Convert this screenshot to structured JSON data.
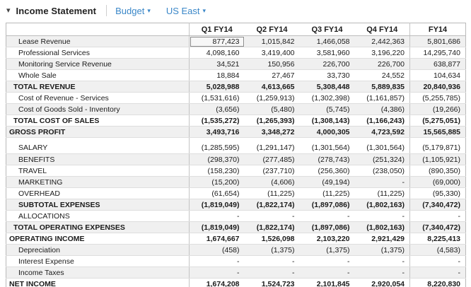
{
  "toolbar": {
    "title": "Income Statement",
    "collapse_caret": "▾",
    "dropdowns": [
      {
        "label": "Budget",
        "caret": "▼"
      },
      {
        "label": "US East",
        "caret": "▼"
      }
    ]
  },
  "colors": {
    "accent_blue": "#3a87c8",
    "row_shade": "#f0f0f0",
    "grid_border": "#b9b9b9",
    "text": "#1a1a1a"
  },
  "table": {
    "columns": [
      "Q1 FY14",
      "Q2 FY14",
      "Q3 FY14",
      "Q4 FY14",
      "FY14"
    ],
    "selection": {
      "row_index": 0,
      "col_index": 0,
      "row_label": "Lease Revenue",
      "column": "Q1 FY14"
    },
    "rows": [
      {
        "label": "Lease Revenue",
        "indent": 2,
        "bold": false,
        "values": [
          "877,423",
          "1,015,842",
          "1,466,058",
          "2,442,363",
          "5,801,686"
        ]
      },
      {
        "label": "Professional Services",
        "indent": 2,
        "bold": false,
        "values": [
          "4,098,160",
          "3,419,400",
          "3,581,960",
          "3,196,220",
          "14,295,740"
        ]
      },
      {
        "label": "Monitoring Service Revenue",
        "indent": 2,
        "bold": false,
        "values": [
          "34,521",
          "150,956",
          "226,700",
          "226,700",
          "638,877"
        ]
      },
      {
        "label": "Whole Sale",
        "indent": 2,
        "bold": false,
        "values": [
          "18,884",
          "27,467",
          "33,730",
          "24,552",
          "104,634"
        ]
      },
      {
        "label": "TOTAL REVENUE",
        "indent": 1,
        "bold": true,
        "values": [
          "5,028,988",
          "4,613,665",
          "5,308,448",
          "5,889,835",
          "20,840,936"
        ]
      },
      {
        "label": "Cost of Revenue - Services",
        "indent": 2,
        "bold": false,
        "values": [
          "(1,531,616)",
          "(1,259,913)",
          "(1,302,398)",
          "(1,161,857)",
          "(5,255,785)"
        ]
      },
      {
        "label": "Cost of Goods Sold - Inventory",
        "indent": 2,
        "bold": false,
        "values": [
          "(3,656)",
          "(5,480)",
          "(5,745)",
          "(4,386)",
          "(19,266)"
        ]
      },
      {
        "label": "TOTAL COST OF SALES",
        "indent": 1,
        "bold": true,
        "values": [
          "(1,535,272)",
          "(1,265,393)",
          "(1,308,143)",
          "(1,166,243)",
          "(5,275,051)"
        ]
      },
      {
        "label": "GROSS PROFIT",
        "indent": 0,
        "bold": true,
        "values": [
          "3,493,716",
          "3,348,272",
          "4,000,305",
          "4,723,592",
          "15,565,885"
        ]
      },
      {
        "type": "spacer"
      },
      {
        "label": "SALARY",
        "indent": 2,
        "bold": false,
        "values": [
          "(1,285,595)",
          "(1,291,147)",
          "(1,301,564)",
          "(1,301,564)",
          "(5,179,871)"
        ]
      },
      {
        "label": "BENEFITS",
        "indent": 2,
        "bold": false,
        "values": [
          "(298,370)",
          "(277,485)",
          "(278,743)",
          "(251,324)",
          "(1,105,921)"
        ]
      },
      {
        "label": "TRAVEL",
        "indent": 2,
        "bold": false,
        "values": [
          "(158,230)",
          "(237,710)",
          "(256,360)",
          "(238,050)",
          "(890,350)"
        ]
      },
      {
        "label": "MARKETING",
        "indent": 2,
        "bold": false,
        "values": [
          "(15,200)",
          "(4,606)",
          "(49,194)",
          "-",
          "(69,000)"
        ]
      },
      {
        "label": "OVERHEAD",
        "indent": 2,
        "bold": false,
        "values": [
          "(61,654)",
          "(11,225)",
          "(11,225)",
          "(11,225)",
          "(95,330)"
        ]
      },
      {
        "label": "SUBTOTAL EXPENSES",
        "indent": 2,
        "bold": true,
        "values": [
          "(1,819,049)",
          "(1,822,174)",
          "(1,897,086)",
          "(1,802,163)",
          "(7,340,472)"
        ]
      },
      {
        "label": "ALLOCATIONS",
        "indent": 2,
        "bold": false,
        "values": [
          "-",
          "-",
          "-",
          "-",
          "-"
        ]
      },
      {
        "label": "TOTAL OPERATING EXPENSES",
        "indent": 1,
        "bold": true,
        "values": [
          "(1,819,049)",
          "(1,822,174)",
          "(1,897,086)",
          "(1,802,163)",
          "(7,340,472)"
        ]
      },
      {
        "label": "OPERATING INCOME",
        "indent": 0,
        "bold": true,
        "values": [
          "1,674,667",
          "1,526,098",
          "2,103,220",
          "2,921,429",
          "8,225,413"
        ]
      },
      {
        "label": "Depreciation",
        "indent": 2,
        "bold": false,
        "values": [
          "(458)",
          "(1,375)",
          "(1,375)",
          "(1,375)",
          "(4,583)"
        ]
      },
      {
        "label": "Interest Expense",
        "indent": 2,
        "bold": false,
        "values": [
          "-",
          "-",
          "-",
          "-",
          "-"
        ]
      },
      {
        "label": "Income Taxes",
        "indent": 2,
        "bold": false,
        "values": [
          "-",
          "-",
          "-",
          "-",
          "-"
        ]
      },
      {
        "label": "NET INCOME",
        "indent": 0,
        "bold": true,
        "values": [
          "1,674,208",
          "1,524,723",
          "2,101,845",
          "2,920,054",
          "8,220,830"
        ]
      }
    ]
  }
}
